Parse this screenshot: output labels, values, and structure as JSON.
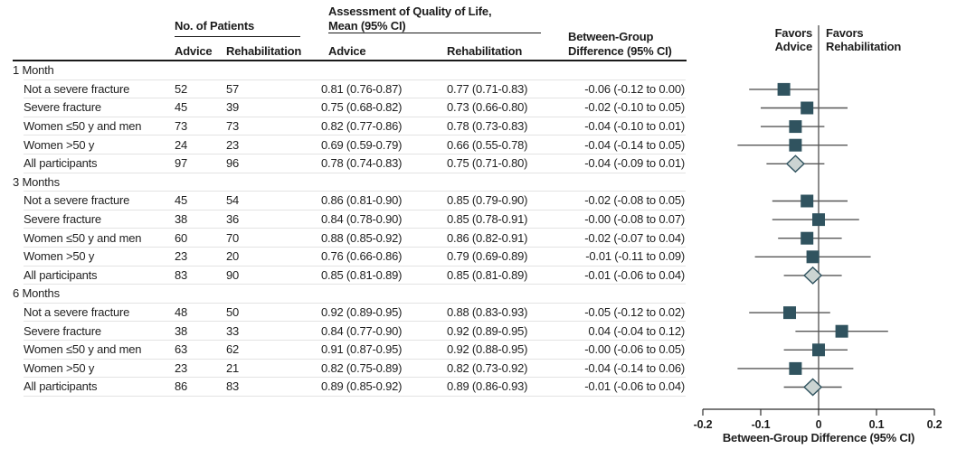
{
  "table": {
    "headers": {
      "patients_group": "No. of Patients",
      "qol_line1": "Assessment of Quality of Life,",
      "qol_line2": "Mean (95% CI)",
      "diff_line1": "Between-Group",
      "diff_line2": "Difference (95% CI)",
      "patients_advice": "Advice",
      "patients_rehab": "Rehabilitation",
      "qol_advice": "Advice",
      "qol_rehab": "Rehabilitation"
    },
    "sections": [
      {
        "label": "1 Month",
        "rows": [
          {
            "label": "Not a severe fracture",
            "advice_n": "52",
            "rehab_n": "57",
            "advice_mean": "0.81 (0.76-0.87)",
            "rehab_mean": "0.77 (0.71-0.83)",
            "difference": "-0.06 (-0.12 to 0.00)",
            "estimate": -0.06,
            "ci_low": -0.12,
            "ci_high": 0.0,
            "marker": "square"
          },
          {
            "label": "Severe fracture",
            "advice_n": "45",
            "rehab_n": "39",
            "advice_mean": "0.75 (0.68-0.82)",
            "rehab_mean": "0.73 (0.66-0.80)",
            "difference": "-0.02 (-0.10 to 0.05)",
            "estimate": -0.02,
            "ci_low": -0.1,
            "ci_high": 0.05,
            "marker": "square"
          },
          {
            "label": "Women ≤50 y and men",
            "advice_n": "73",
            "rehab_n": "73",
            "advice_mean": "0.82 (0.77-0.86)",
            "rehab_mean": "0.78 (0.73-0.83)",
            "difference": "-0.04 (-0.10 to 0.01)",
            "estimate": -0.04,
            "ci_low": -0.1,
            "ci_high": 0.01,
            "marker": "square"
          },
          {
            "label": "Women >50 y",
            "advice_n": "24",
            "rehab_n": "23",
            "advice_mean": "0.69 (0.59-0.79)",
            "rehab_mean": "0.66 (0.55-0.78)",
            "difference": "-0.04 (-0.14 to 0.05)",
            "estimate": -0.04,
            "ci_low": -0.14,
            "ci_high": 0.05,
            "marker": "square"
          },
          {
            "label": "All participants",
            "advice_n": "97",
            "rehab_n": "96",
            "advice_mean": "0.78 (0.74-0.83)",
            "rehab_mean": "0.75 (0.71-0.80)",
            "difference": "-0.04 (-0.09 to 0.01)",
            "estimate": -0.04,
            "ci_low": -0.09,
            "ci_high": 0.01,
            "marker": "diamond"
          }
        ]
      },
      {
        "label": "3 Months",
        "rows": [
          {
            "label": "Not a severe fracture",
            "advice_n": "45",
            "rehab_n": "54",
            "advice_mean": "0.86 (0.81-0.90)",
            "rehab_mean": "0.85 (0.79-0.90)",
            "difference": "-0.02 (-0.08 to 0.05)",
            "estimate": -0.02,
            "ci_low": -0.08,
            "ci_high": 0.05,
            "marker": "square"
          },
          {
            "label": "Severe fracture",
            "advice_n": "38",
            "rehab_n": "36",
            "advice_mean": "0.84 (0.78-0.90)",
            "rehab_mean": "0.85 (0.78-0.91)",
            "difference": "-0.00 (-0.08 to 0.07)",
            "estimate": -0.0,
            "ci_low": -0.08,
            "ci_high": 0.07,
            "marker": "square"
          },
          {
            "label": "Women ≤50 y and men",
            "advice_n": "60",
            "rehab_n": "70",
            "advice_mean": "0.88 (0.85-0.92)",
            "rehab_mean": "0.86 (0.82-0.91)",
            "difference": "-0.02 (-0.07 to 0.04)",
            "estimate": -0.02,
            "ci_low": -0.07,
            "ci_high": 0.04,
            "marker": "square"
          },
          {
            "label": "Women >50 y",
            "advice_n": "23",
            "rehab_n": "20",
            "advice_mean": "0.76 (0.66-0.86)",
            "rehab_mean": "0.79 (0.69-0.89)",
            "difference": "-0.01 (-0.11 to 0.09)",
            "estimate": -0.01,
            "ci_low": -0.11,
            "ci_high": 0.09,
            "marker": "square"
          },
          {
            "label": "All participants",
            "advice_n": "83",
            "rehab_n": "90",
            "advice_mean": "0.85 (0.81-0.89)",
            "rehab_mean": "0.85 (0.81-0.89)",
            "difference": "-0.01 (-0.06 to 0.04)",
            "estimate": -0.01,
            "ci_low": -0.06,
            "ci_high": 0.04,
            "marker": "diamond"
          }
        ]
      },
      {
        "label": "6 Months",
        "rows": [
          {
            "label": "Not a severe fracture",
            "advice_n": "48",
            "rehab_n": "50",
            "advice_mean": "0.92 (0.89-0.95)",
            "rehab_mean": "0.88 (0.83-0.93)",
            "difference": "-0.05 (-0.12 to 0.02)",
            "estimate": -0.05,
            "ci_low": -0.12,
            "ci_high": 0.02,
            "marker": "square"
          },
          {
            "label": "Severe fracture",
            "advice_n": "38",
            "rehab_n": "33",
            "advice_mean": "0.84 (0.77-0.90)",
            "rehab_mean": "0.92 (0.89-0.95)",
            "difference": "0.04 (-0.04 to 0.12)",
            "estimate": 0.04,
            "ci_low": -0.04,
            "ci_high": 0.12,
            "marker": "square"
          },
          {
            "label": "Women ≤50 y and men",
            "advice_n": "63",
            "rehab_n": "62",
            "advice_mean": "0.91 (0.87-0.95)",
            "rehab_mean": "0.92 (0.88-0.95)",
            "difference": "-0.00 (-0.06 to 0.05)",
            "estimate": -0.0,
            "ci_low": -0.06,
            "ci_high": 0.05,
            "marker": "square"
          },
          {
            "label": "Women >50 y",
            "advice_n": "23",
            "rehab_n": "21",
            "advice_mean": "0.82 (0.75-0.89)",
            "rehab_mean": "0.82 (0.73-0.92)",
            "difference": "-0.04 (-0.14 to 0.06)",
            "estimate": -0.04,
            "ci_low": -0.14,
            "ci_high": 0.06,
            "marker": "square"
          },
          {
            "label": "All participants",
            "advice_n": "86",
            "rehab_n": "83",
            "advice_mean": "0.89 (0.85-0.92)",
            "rehab_mean": "0.89 (0.86-0.93)",
            "difference": "-0.01 (-0.06 to 0.04)",
            "estimate": -0.01,
            "ci_low": -0.06,
            "ci_high": 0.04,
            "marker": "diamond"
          }
        ]
      }
    ]
  },
  "plot": {
    "favors_left": [
      "Favors",
      "Advice"
    ],
    "favors_right": [
      "Favors",
      "Rehabilitation"
    ],
    "axis_label": "Between-Group Difference (95% CI)",
    "ticks": [
      {
        "label": "-0.2",
        "value": -0.2
      },
      {
        "label": "-0.1",
        "value": -0.1
      },
      {
        "label": "0",
        "value": 0
      },
      {
        "label": "0.1",
        "value": 0.1
      },
      {
        "label": "0.2",
        "value": 0.2
      }
    ],
    "xlim": [
      -0.2,
      0.2
    ],
    "colors": {
      "square_marker": "#30535f",
      "diamond_fill": "#cbd4d2",
      "diamond_stroke": "#30535f",
      "ci_line": "#565656",
      "zero_line": "#707070",
      "axis_line": "#2b2b2b"
    }
  },
  "chart_data": {
    "type": "forest",
    "title": "Assessment of Quality of Life",
    "xlabel": "Between-Group Difference (95% CI)",
    "xlim": [
      -0.2,
      0.2
    ],
    "x_ticks": [
      -0.2,
      -0.1,
      0,
      0.1,
      0.2
    ],
    "zero_line": 0,
    "favors_left": "Favors Advice",
    "favors_right": "Favors Rehabilitation",
    "groups": [
      {
        "group": "1 Month",
        "points": [
          {
            "label": "Not a severe fracture",
            "estimate": -0.06,
            "ci": [
              -0.12,
              0.0
            ],
            "marker": "square"
          },
          {
            "label": "Severe fracture",
            "estimate": -0.02,
            "ci": [
              -0.1,
              0.05
            ],
            "marker": "square"
          },
          {
            "label": "Women ≤50 y and men",
            "estimate": -0.04,
            "ci": [
              -0.1,
              0.01
            ],
            "marker": "square"
          },
          {
            "label": "Women >50 y",
            "estimate": -0.04,
            "ci": [
              -0.14,
              0.05
            ],
            "marker": "square"
          },
          {
            "label": "All participants",
            "estimate": -0.04,
            "ci": [
              -0.09,
              0.01
            ],
            "marker": "diamond"
          }
        ]
      },
      {
        "group": "3 Months",
        "points": [
          {
            "label": "Not a severe fracture",
            "estimate": -0.02,
            "ci": [
              -0.08,
              0.05
            ],
            "marker": "square"
          },
          {
            "label": "Severe fracture",
            "estimate": -0.0,
            "ci": [
              -0.08,
              0.07
            ],
            "marker": "square"
          },
          {
            "label": "Women ≤50 y and men",
            "estimate": -0.02,
            "ci": [
              -0.07,
              0.04
            ],
            "marker": "square"
          },
          {
            "label": "Women >50 y",
            "estimate": -0.01,
            "ci": [
              -0.11,
              0.09
            ],
            "marker": "square"
          },
          {
            "label": "All participants",
            "estimate": -0.01,
            "ci": [
              -0.06,
              0.04
            ],
            "marker": "diamond"
          }
        ]
      },
      {
        "group": "6 Months",
        "points": [
          {
            "label": "Not a severe fracture",
            "estimate": -0.05,
            "ci": [
              -0.12,
              0.02
            ],
            "marker": "square"
          },
          {
            "label": "Severe fracture",
            "estimate": 0.04,
            "ci": [
              -0.04,
              0.12
            ],
            "marker": "square"
          },
          {
            "label": "Women ≤50 y and men",
            "estimate": -0.0,
            "ci": [
              -0.06,
              0.05
            ],
            "marker": "square"
          },
          {
            "label": "Women >50 y",
            "estimate": -0.04,
            "ci": [
              -0.14,
              0.06
            ],
            "marker": "square"
          },
          {
            "label": "All participants",
            "estimate": -0.01,
            "ci": [
              -0.06,
              0.04
            ],
            "marker": "diamond"
          }
        ]
      }
    ]
  }
}
